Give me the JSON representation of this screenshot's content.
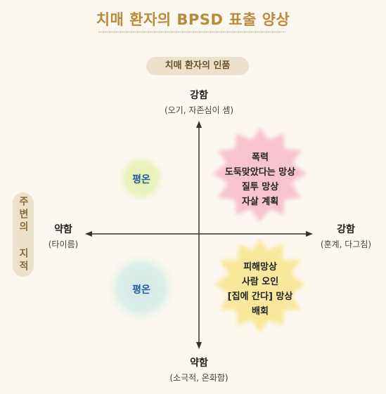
{
  "title": "치매 환자의 BPSD 표출 양상",
  "y_axis_title": "치매 환자의 인품",
  "x_axis_title": "주변의 지적",
  "top": {
    "label": "강함",
    "sub": "(오기, 자존심이 셈)"
  },
  "bottom": {
    "label": "약함",
    "sub": "(소극적, 온화함)"
  },
  "left": {
    "label": "약함",
    "sub": "(타이름)"
  },
  "right": {
    "label": "강함",
    "sub": "(훈계, 다그침)"
  },
  "quadrants": {
    "top_left": "평온",
    "bottom_left": "평온",
    "top_right": [
      "폭력",
      "도둑맞았다는 망상",
      "질투 망상",
      "자살 계획"
    ],
    "bottom_right": [
      "피해망상",
      "사람 오인",
      "[집에 간다] 망상",
      "배회"
    ]
  },
  "colors": {
    "title": "#b98a3c",
    "calm_text": "#2b5fa0",
    "pink_blob": "#f6c9d1",
    "yellow_blob": "#faeaa0",
    "green_blob": "#e6f1b8",
    "blue_blob": "#d5ebe6"
  }
}
